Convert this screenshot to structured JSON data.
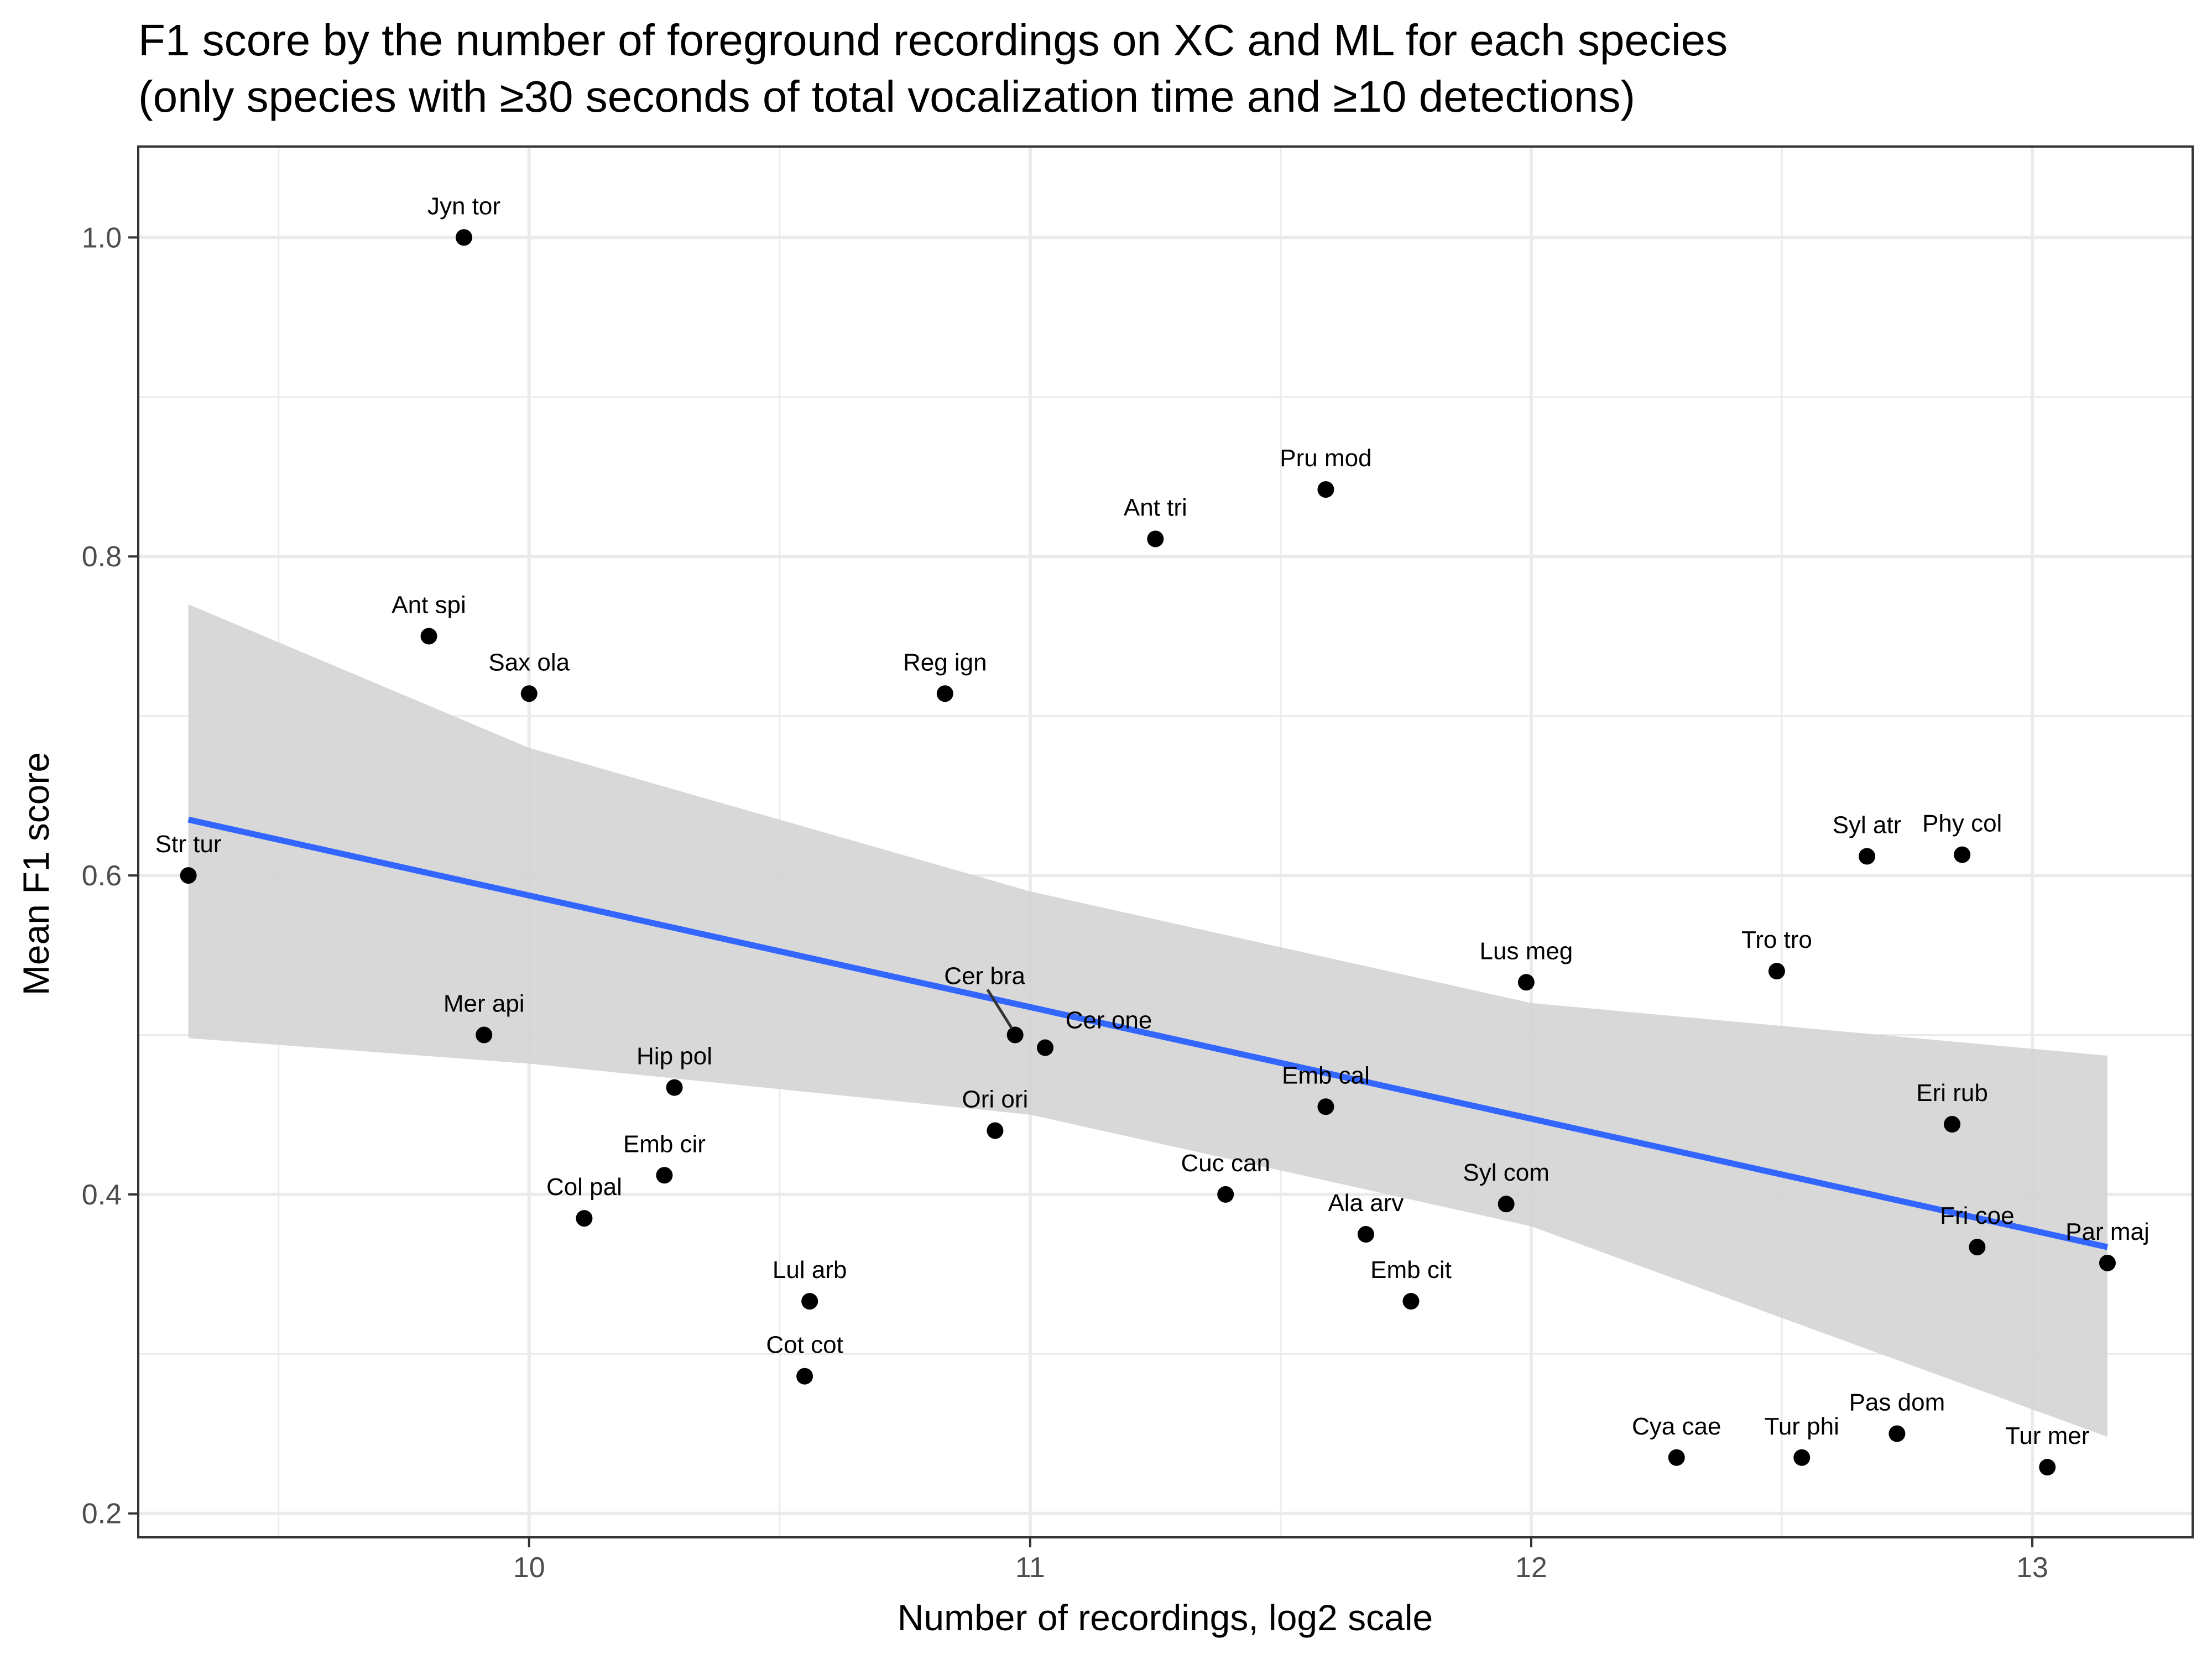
{
  "chart_data": {
    "type": "scatter",
    "title_lines": [
      "F1 score by the number of foreground recordings on XC and ML for each species",
      "(only species with ≥30 seconds of total vocalization time and ≥10 detections)"
    ],
    "xlabel": "Number of recordings, log2 scale",
    "ylabel": "Mean F1 score",
    "xlim": [
      9.22,
      13.32
    ],
    "ylim": [
      0.185,
      1.057
    ],
    "x_ticks": [
      10,
      11,
      12,
      13
    ],
    "x_tick_labels": [
      "10",
      "11",
      "12",
      "13"
    ],
    "y_ticks": [
      0.2,
      0.4,
      0.6,
      0.8,
      1.0
    ],
    "y_tick_labels": [
      "0.2",
      "0.4",
      "0.6",
      "0.8",
      "1.0"
    ],
    "x_minor_ticks": [
      9.5,
      10.5,
      11.5,
      12.5
    ],
    "y_minor_ticks": [
      0.3,
      0.5,
      0.7,
      0.9
    ],
    "grid": true,
    "theme": "bw",
    "points": [
      {
        "label": "Jyn tor",
        "x": 9.87,
        "y": 1.0
      },
      {
        "label": "Pru mod",
        "x": 11.59,
        "y": 0.842
      },
      {
        "label": "Ant tri",
        "x": 11.25,
        "y": 0.811
      },
      {
        "label": "Ant spi",
        "x": 9.8,
        "y": 0.75
      },
      {
        "label": "Sax ola",
        "x": 10.0,
        "y": 0.714
      },
      {
        "label": "Reg ign",
        "x": 10.83,
        "y": 0.714
      },
      {
        "label": "Str tur",
        "x": 9.32,
        "y": 0.6
      },
      {
        "label": "Syl atr",
        "x": 12.67,
        "y": 0.612
      },
      {
        "label": "Phy col",
        "x": 12.86,
        "y": 0.613
      },
      {
        "label": "Tro tro",
        "x": 12.49,
        "y": 0.54
      },
      {
        "label": "Lus meg",
        "x": 11.99,
        "y": 0.533
      },
      {
        "label": "Cer bra",
        "x": 10.97,
        "y": 0.5
      },
      {
        "label": "Cer one",
        "x": 11.03,
        "y": 0.492
      },
      {
        "label": "Mer api",
        "x": 9.91,
        "y": 0.5
      },
      {
        "label": "Hip pol",
        "x": 10.29,
        "y": 0.467
      },
      {
        "label": "Emb cal",
        "x": 11.59,
        "y": 0.455
      },
      {
        "label": "Eri rub",
        "x": 12.84,
        "y": 0.444
      },
      {
        "label": "Ori ori",
        "x": 10.93,
        "y": 0.44
      },
      {
        "label": "Emb cir",
        "x": 10.27,
        "y": 0.412
      },
      {
        "label": "Cuc can",
        "x": 11.39,
        "y": 0.4
      },
      {
        "label": "Syl com",
        "x": 11.95,
        "y": 0.394
      },
      {
        "label": "Col pal",
        "x": 10.11,
        "y": 0.385
      },
      {
        "label": "Ala arv",
        "x": 11.67,
        "y": 0.375
      },
      {
        "label": "Fri coe",
        "x": 12.89,
        "y": 0.367
      },
      {
        "label": "Par maj",
        "x": 13.15,
        "y": 0.357
      },
      {
        "label": "Lul arb",
        "x": 10.56,
        "y": 0.333
      },
      {
        "label": "Emb cit",
        "x": 11.76,
        "y": 0.333
      },
      {
        "label": "Cot cot",
        "x": 10.55,
        "y": 0.286
      },
      {
        "label": "Pas dom",
        "x": 12.73,
        "y": 0.25
      },
      {
        "label": "Cya cae",
        "x": 12.29,
        "y": 0.235
      },
      {
        "label": "Tur phi",
        "x": 12.54,
        "y": 0.235
      },
      {
        "label": "Tur mer",
        "x": 13.03,
        "y": 0.229
      }
    ],
    "trend_line": {
      "x": [
        9.32,
        13.15
      ],
      "y": [
        0.635,
        0.367
      ],
      "color": "#3366ff"
    },
    "confidence_band": {
      "x": [
        9.32,
        10.0,
        11.0,
        12.0,
        13.15
      ],
      "lower": [
        0.498,
        0.482,
        0.45,
        0.38,
        0.248
      ],
      "upper": [
        0.77,
        0.68,
        0.59,
        0.52,
        0.487
      ],
      "color": "#d4d4d4"
    },
    "point_color": "#000000"
  }
}
